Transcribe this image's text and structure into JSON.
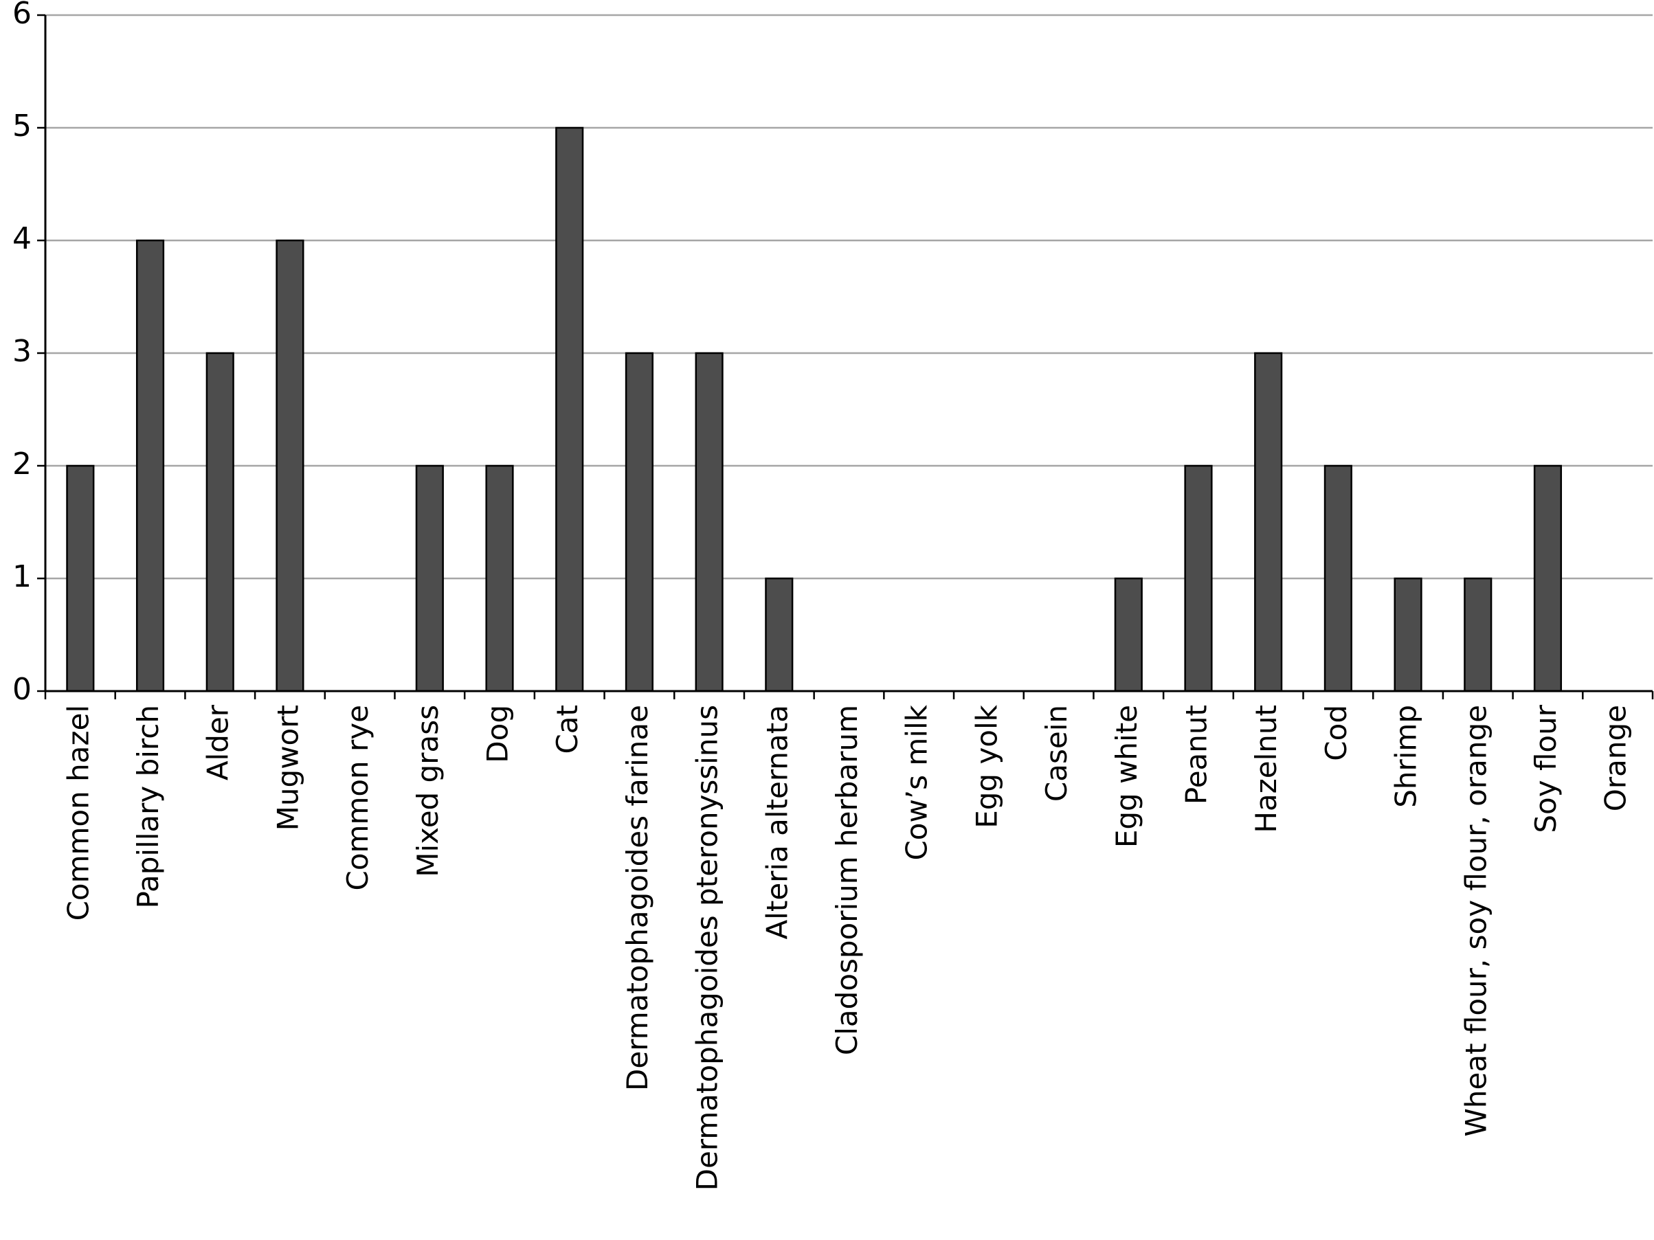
{
  "chart_data": {
    "type": "bar",
    "title": "",
    "xlabel": "",
    "ylabel": "",
    "ylim": [
      0,
      6
    ],
    "yticks": [
      0,
      1,
      2,
      3,
      4,
      5,
      6
    ],
    "grid": true,
    "categories": [
      "Common hazel",
      "Papillary birch",
      "Alder",
      "Mugwort",
      "Common rye",
      "Mixed grass",
      "Dog",
      "Cat",
      "Dermatophagoides farinae",
      "Dermatophagoides pteronyssinus",
      "Alteria alternata",
      "Cladosporium herbarum",
      "Cow’s milk",
      "Egg yolk",
      "Casein",
      "Egg white",
      "Peanut",
      "Hazelnut",
      "Cod",
      "Shrimp",
      "Wheat flour, soy flour, orange",
      "Soy flour",
      "Orange"
    ],
    "values": [
      2,
      4,
      3,
      4,
      0,
      2,
      2,
      5,
      3,
      3,
      1,
      0,
      0,
      0,
      0,
      1,
      2,
      3,
      2,
      1,
      1,
      2,
      0
    ],
    "colors": {
      "bar_fill": "#4d4d4d",
      "bar_stroke": "#000000",
      "grid": "#a6a6a6",
      "axis": "#000000"
    }
  }
}
